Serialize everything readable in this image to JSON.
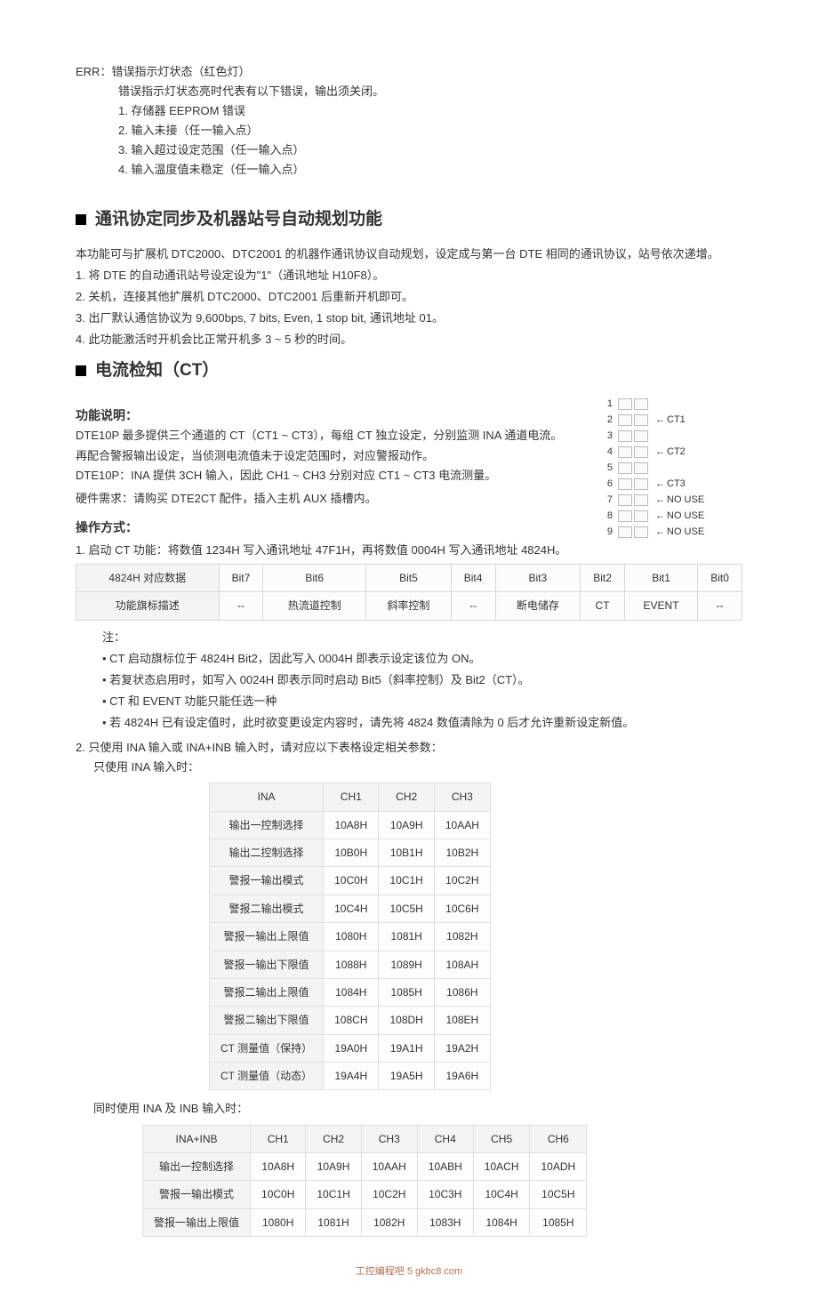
{
  "err": {
    "head": "ERR：错误指示灯状态（红色灯）",
    "sub": "错误指示灯状态亮时代表有以下错误，输出须关闭。",
    "items": [
      "1. 存储器 EEPROM 错误",
      "2. 输入未接（任一输入点）",
      "3. 输入超过设定范围（任一输入点）",
      "4. 输入温度值未稳定（任一输入点）"
    ]
  },
  "sec1": {
    "title": "通讯协定同步及机器站号自动规划功能",
    "intro": "本功能可与扩展机 DTC2000、DTC2001 的机器作通讯协议自动规划，设定成与第一台 DTE 相同的通讯协议，站号依次递增。",
    "steps": [
      "1.  将 DTE 的自动通讯站号设定设为\"1\"（通讯地址 H10F8）。",
      "2.  关机，连接其他扩展机 DTC2000、DTC2001 后重新开机即可。",
      "3.  出厂默认通信协议为 9,600bps, 7 bits, Even, 1 stop bit,  通讯地址 01。",
      "4.  此功能激活时开机会比正常开机多 3 ~ 5 秒的时间。"
    ]
  },
  "sec2": {
    "title": "电流检知（CT）",
    "funcHead": "功能说明：",
    "funcLines": [
      "DTE10P 最多提供三个通道的 CT（CT1 ~ CT3），每组 CT 独立设定，分别监测 INA 通道电流。",
      "再配合警报输出设定，当侦测电流值未于设定范围时，对应警报动作。",
      "DTE10P：INA 提供 3CH 输入，因此 CH1 ~ CH3 分别对应 CT1 ~ CT3 电流测量。",
      "硬件需求：请购买 DTE2CT 配件，插入主机 AUX 插槽内。"
    ],
    "opHead": "操作方式：",
    "op1": "1.  启动 CT 功能：将数值 1234H 写入通讯地址 47F1H，再将数值 0004H 写入通讯地址 4824H。",
    "bits": {
      "row1": [
        "4824H 对应数据",
        "Bit7",
        "Bit6",
        "Bit5",
        "Bit4",
        "Bit3",
        "Bit2",
        "Bit1",
        "Bit0"
      ],
      "row2": [
        "功能旗标描述",
        "--",
        "热流道控制",
        "斜率控制",
        "--",
        "断电储存",
        "CT",
        "EVENT",
        "--"
      ]
    },
    "notesHead": "注：",
    "notes": [
      "CT 启动旗标位于 4824H Bit2，因此写入 0004H 即表示设定该位为 ON。",
      "若复状态启用时，如写入 0024H 即表示同时启动 Bit5（斜率控制）及 Bit2（CT）。",
      "CT 和 EVENT 功能只能任选一种",
      "若 4824H 已有设定值时，此时欲变更设定内容时，请先将 4824 数值清除为 0 后才允许重新设定新值。"
    ],
    "op2": "2.  只使用 INA 输入或 INA+INB 输入时，请对应以下表格设定相关参数：",
    "op2a": "只使用 INA 输入时：",
    "ina": {
      "header": [
        "INA",
        "CH1",
        "CH2",
        "CH3"
      ],
      "rows": [
        [
          "输出一控制选择",
          "10A8H",
          "10A9H",
          "10AAH"
        ],
        [
          "输出二控制选择",
          "10B0H",
          "10B1H",
          "10B2H"
        ],
        [
          "警报一输出模式",
          "10C0H",
          "10C1H",
          "10C2H"
        ],
        [
          "警报二输出模式",
          "10C4H",
          "10C5H",
          "10C6H"
        ],
        [
          "警报一输出上限值",
          "1080H",
          "1081H",
          "1082H"
        ],
        [
          "警报一输出下限值",
          "1088H",
          "1089H",
          "108AH"
        ],
        [
          "警报二输出上限值",
          "1084H",
          "1085H",
          "1086H"
        ],
        [
          "警报二输出下限值",
          "108CH",
          "108DH",
          "108EH"
        ],
        [
          "CT 测量值（保持）",
          "19A0H",
          "19A1H",
          "19A2H"
        ],
        [
          "CT 测量值（动态）",
          "19A4H",
          "19A5H",
          "19A6H"
        ]
      ]
    },
    "op2b": "同时使用 INA 及 INB 输入时：",
    "inainb": {
      "header": [
        "INA+INB",
        "CH1",
        "CH2",
        "CH3",
        "CH4",
        "CH5",
        "CH6"
      ],
      "rows": [
        [
          "输出一控制选择",
          "10A8H",
          "10A9H",
          "10AAH",
          "10ABH",
          "10ACH",
          "10ADH"
        ],
        [
          "警报一输出模式",
          "10C0H",
          "10C1H",
          "10C2H",
          "10C3H",
          "10C4H",
          "10C5H"
        ],
        [
          "警报一输出上限值",
          "1080H",
          "1081H",
          "1082H",
          "1083H",
          "1084H",
          "1085H"
        ]
      ]
    },
    "ctbox": {
      "rows": [
        {
          "n": "1",
          "lab": ""
        },
        {
          "n": "2",
          "lab": "CT1"
        },
        {
          "n": "3",
          "lab": ""
        },
        {
          "n": "4",
          "lab": "CT2"
        },
        {
          "n": "5",
          "lab": ""
        },
        {
          "n": "6",
          "lab": "CT3"
        },
        {
          "n": "7",
          "lab": "NO USE"
        },
        {
          "n": "8",
          "lab": "NO USE"
        },
        {
          "n": "9",
          "lab": "NO USE"
        }
      ]
    }
  },
  "footer": {
    "left": "工控编程吧",
    "page": "5",
    "right": "gkbc8.com"
  }
}
